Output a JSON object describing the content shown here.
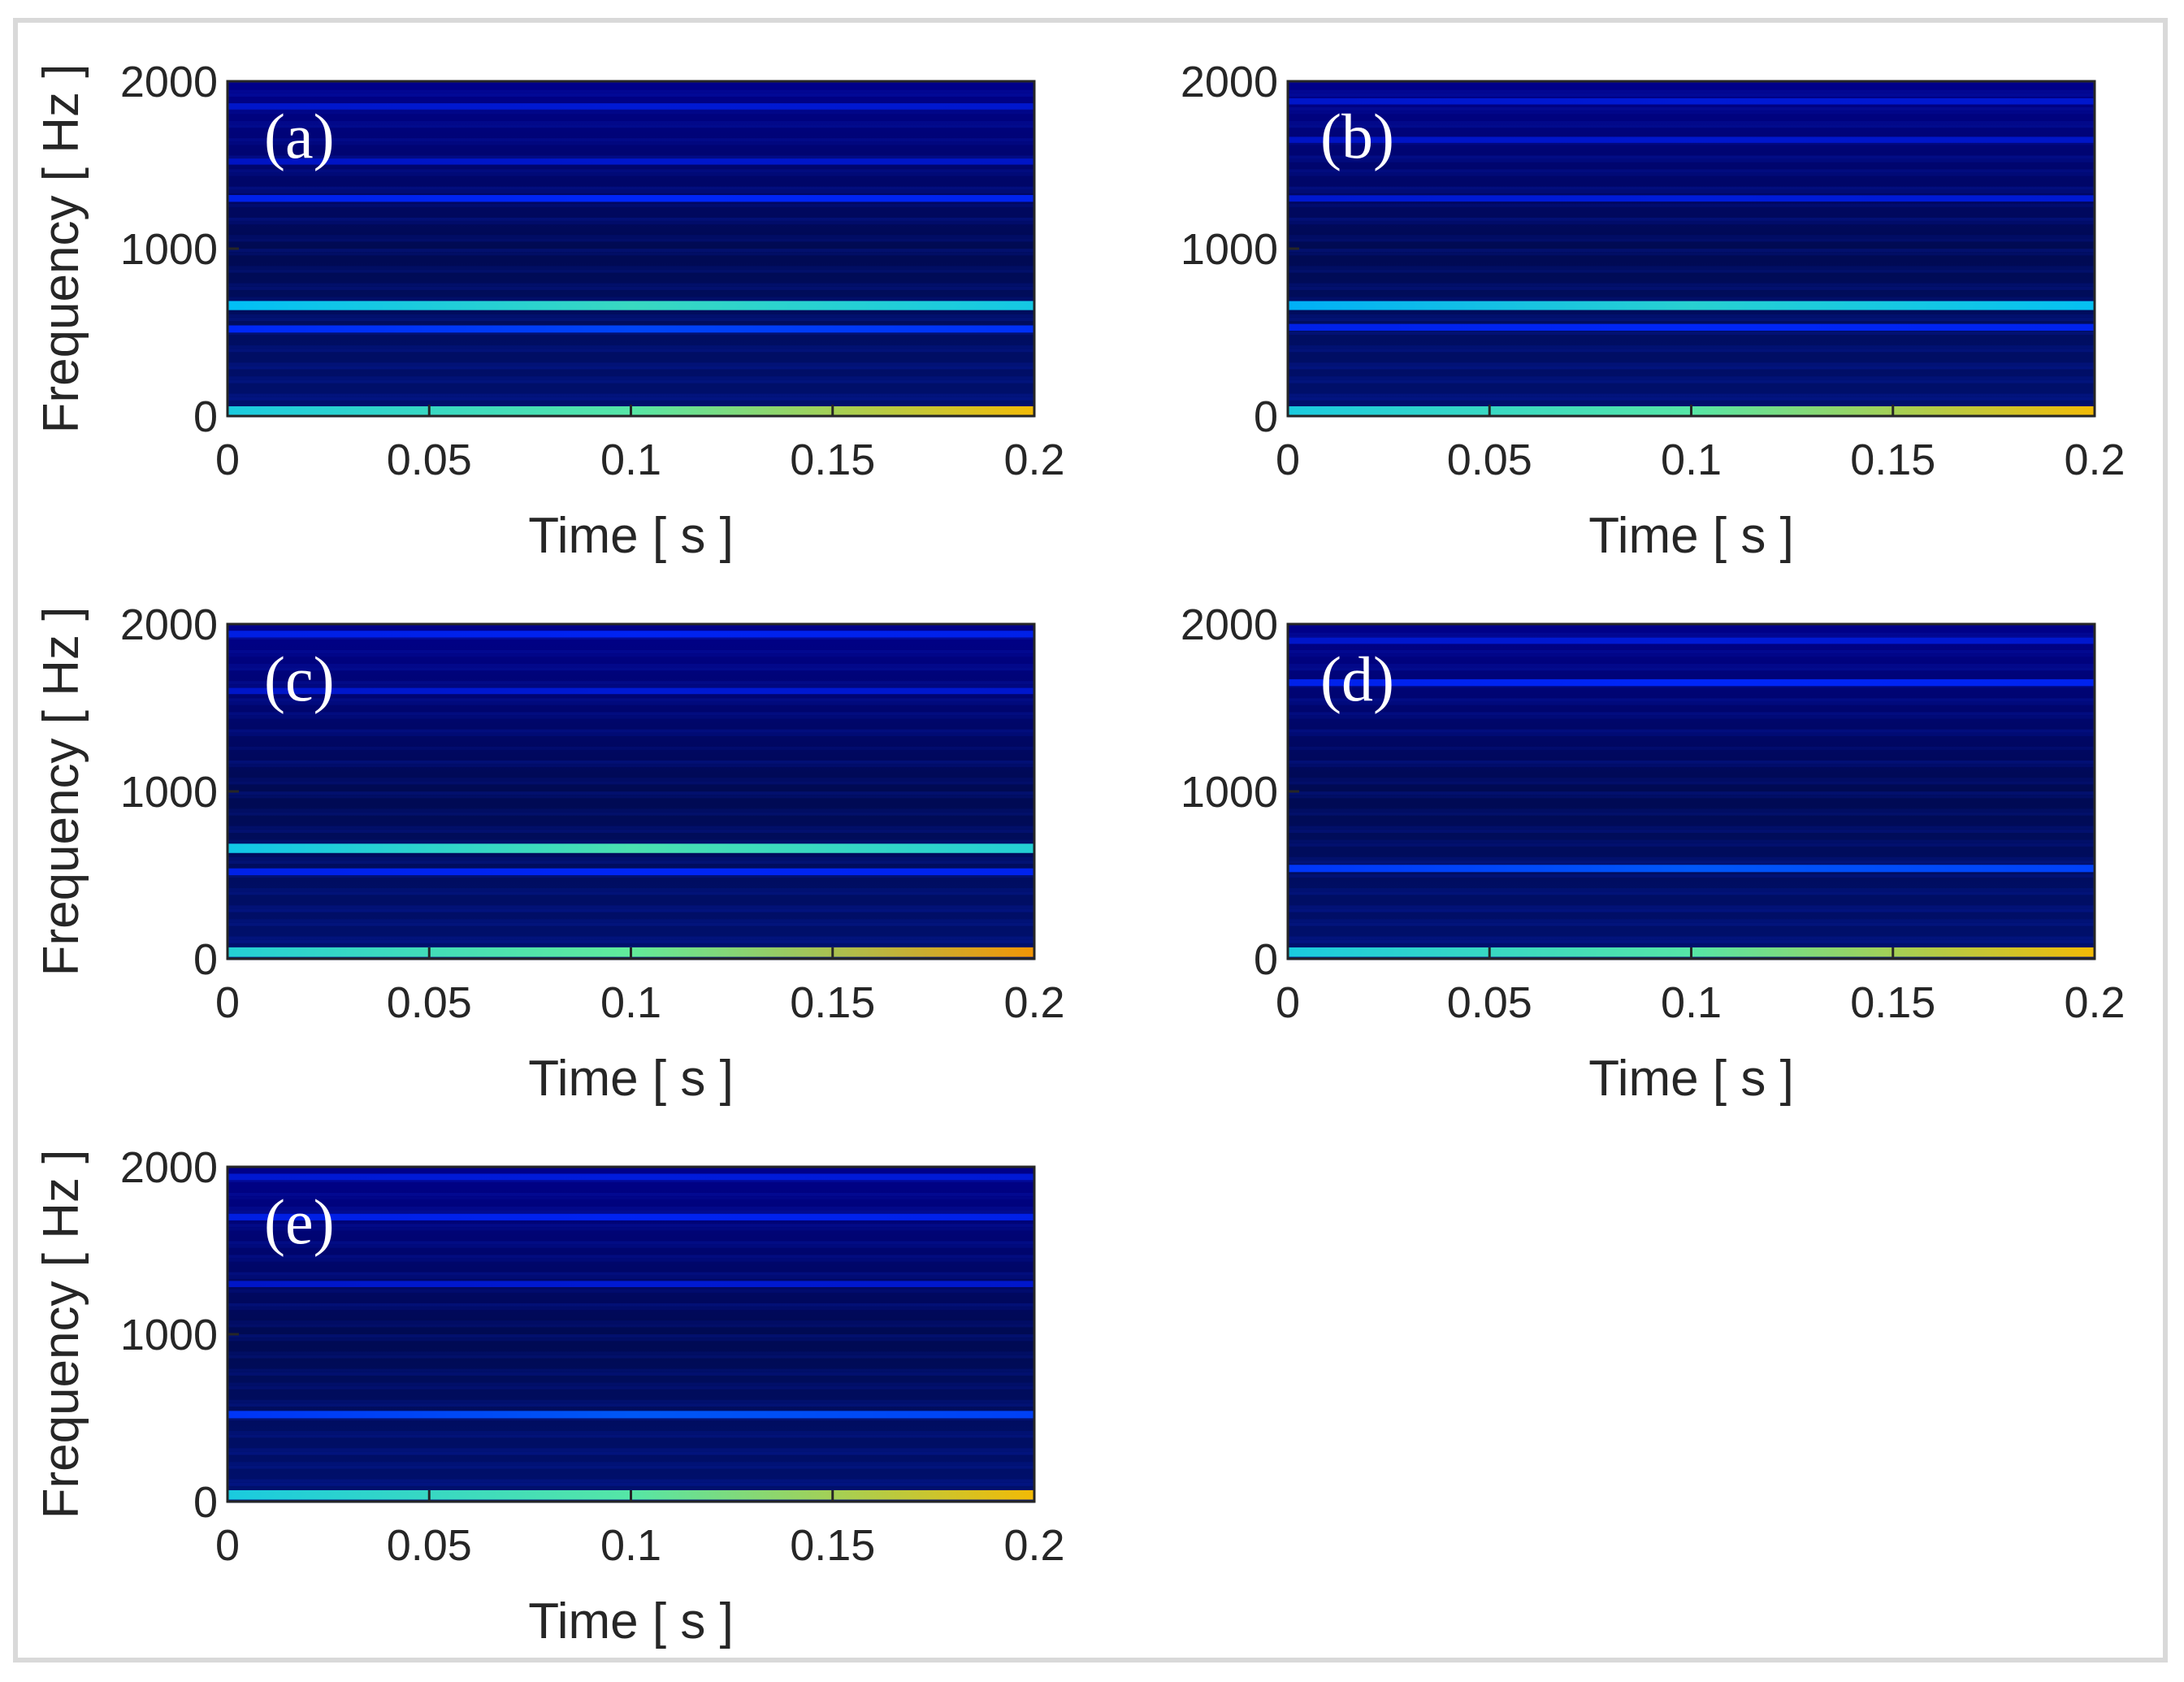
{
  "chart_data": [
    {
      "type": "heatmap",
      "panel_label": "(a)",
      "title": "",
      "xlabel": "Time [ s ]",
      "ylabel": "Frequency [ Hz ]",
      "xlim": [
        0,
        0.2
      ],
      "ylim": [
        0,
        2000
      ],
      "x_ticks": [
        0,
        0.05,
        0.1,
        0.15,
        0.2
      ],
      "x_tick_labels": [
        "0",
        "0.05",
        "0.1",
        "0.15",
        "0.2"
      ],
      "y_ticks": [
        0,
        1000,
        2000
      ],
      "y_tick_labels": [
        "0",
        "1000",
        "2000"
      ],
      "colormap": "jet",
      "grid": false,
      "bands": [
        {
          "frequency": 30,
          "intensity": 0.7
        },
        {
          "frequency": 520,
          "intensity": 0.35
        },
        {
          "frequency": 660,
          "intensity": 0.65
        },
        {
          "frequency": 1300,
          "intensity": 0.3
        },
        {
          "frequency": 1520,
          "intensity": 0.18
        },
        {
          "frequency": 1850,
          "intensity": 0.2
        }
      ]
    },
    {
      "type": "heatmap",
      "panel_label": "(b)",
      "title": "",
      "xlabel": "Time [ s ]",
      "ylabel": "",
      "xlim": [
        0,
        0.2
      ],
      "ylim": [
        0,
        2000
      ],
      "x_ticks": [
        0,
        0.05,
        0.1,
        0.15,
        0.2
      ],
      "x_tick_labels": [
        "0",
        "0.05",
        "0.1",
        "0.15",
        "0.2"
      ],
      "y_ticks": [
        0,
        1000,
        2000
      ],
      "y_tick_labels": [
        "0",
        "1000",
        "2000"
      ],
      "colormap": "jet",
      "grid": false,
      "bands": [
        {
          "frequency": 30,
          "intensity": 0.7
        },
        {
          "frequency": 530,
          "intensity": 0.3
        },
        {
          "frequency": 660,
          "intensity": 0.62
        },
        {
          "frequency": 1300,
          "intensity": 0.22
        },
        {
          "frequency": 1650,
          "intensity": 0.18
        },
        {
          "frequency": 1880,
          "intensity": 0.2
        }
      ]
    },
    {
      "type": "heatmap",
      "panel_label": "(c)",
      "title": "",
      "xlabel": "Time [ s ]",
      "ylabel": "Frequency [ Hz ]",
      "xlim": [
        0,
        0.2
      ],
      "ylim": [
        0,
        2000
      ],
      "x_ticks": [
        0,
        0.05,
        0.1,
        0.15,
        0.2
      ],
      "x_tick_labels": [
        "0",
        "0.05",
        "0.1",
        "0.15",
        "0.2"
      ],
      "y_ticks": [
        0,
        1000,
        2000
      ],
      "y_tick_labels": [
        "0",
        "1000",
        "2000"
      ],
      "colormap": "jet",
      "grid": false,
      "bands": [
        {
          "frequency": 40,
          "intensity": 0.72
        },
        {
          "frequency": 520,
          "intensity": 0.3
        },
        {
          "frequency": 660,
          "intensity": 0.68
        },
        {
          "frequency": 1600,
          "intensity": 0.2
        },
        {
          "frequency": 1940,
          "intensity": 0.28
        }
      ]
    },
    {
      "type": "heatmap",
      "panel_label": "(d)",
      "title": "",
      "xlabel": "Time [ s ]",
      "ylabel": "",
      "xlim": [
        0,
        0.2
      ],
      "ylim": [
        0,
        2000
      ],
      "x_ticks": [
        0,
        0.05,
        0.1,
        0.15,
        0.2
      ],
      "x_tick_labels": [
        "0",
        "0.05",
        "0.1",
        "0.15",
        "0.2"
      ],
      "y_ticks": [
        0,
        1000,
        2000
      ],
      "y_tick_labels": [
        "0",
        "1000",
        "2000"
      ],
      "colormap": "jet",
      "grid": false,
      "bands": [
        {
          "frequency": 40,
          "intensity": 0.7
        },
        {
          "frequency": 540,
          "intensity": 0.38
        },
        {
          "frequency": 1650,
          "intensity": 0.3
        },
        {
          "frequency": 1900,
          "intensity": 0.2
        }
      ]
    },
    {
      "type": "heatmap",
      "panel_label": "(e)",
      "title": "",
      "xlabel": "Time [ s ]",
      "ylabel": "Frequency [ Hz ]",
      "xlim": [
        0,
        0.2
      ],
      "ylim": [
        0,
        2000
      ],
      "x_ticks": [
        0,
        0.05,
        0.1,
        0.15,
        0.2
      ],
      "x_tick_labels": [
        "0",
        "0.05",
        "0.1",
        "0.15",
        "0.2"
      ],
      "y_ticks": [
        0,
        1000,
        2000
      ],
      "y_tick_labels": [
        "0",
        "1000",
        "2000"
      ],
      "colormap": "jet",
      "grid": false,
      "bands": [
        {
          "frequency": 40,
          "intensity": 0.7
        },
        {
          "frequency": 520,
          "intensity": 0.38
        },
        {
          "frequency": 1300,
          "intensity": 0.2
        },
        {
          "frequency": 1700,
          "intensity": 0.28
        },
        {
          "frequency": 1940,
          "intensity": 0.22
        }
      ]
    }
  ]
}
